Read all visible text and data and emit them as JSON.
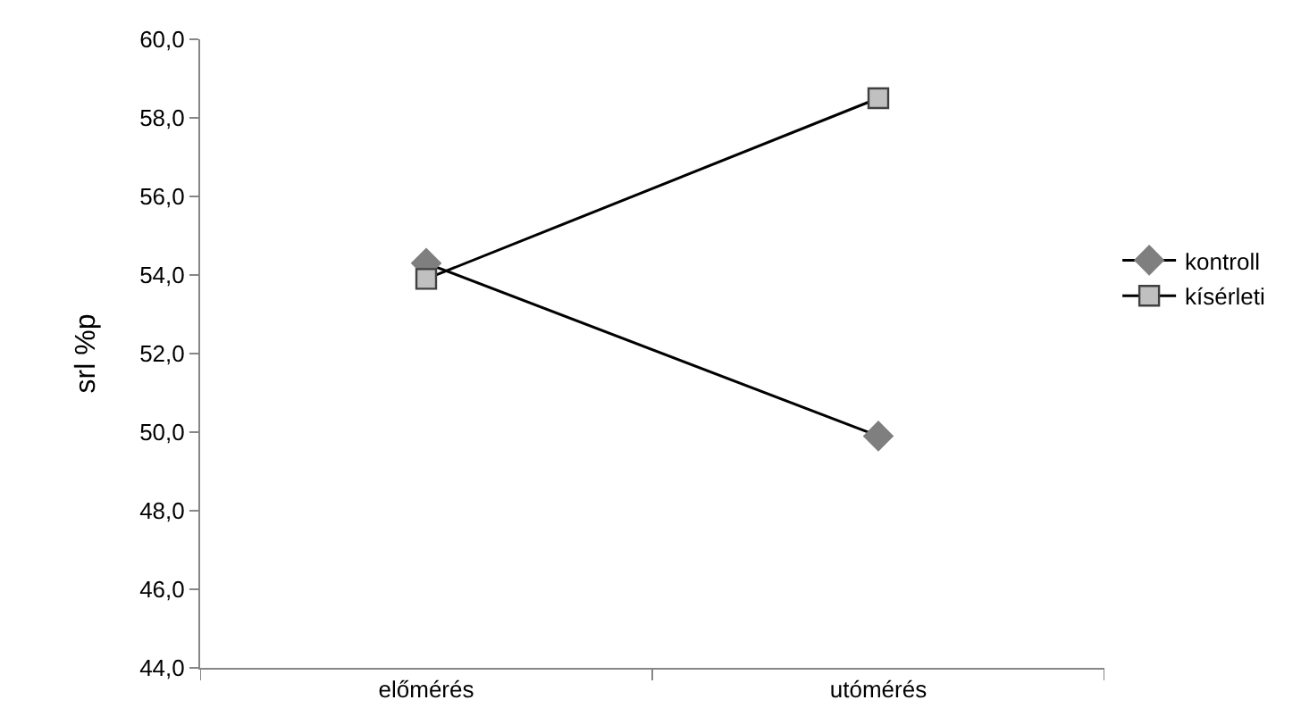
{
  "chart_data": {
    "type": "line",
    "ylabel": "srl %p",
    "categories": [
      "előmérés",
      "utómérés"
    ],
    "series": [
      {
        "name": "kontroll",
        "color": "#7f7f7f",
        "marker": "diamond",
        "values": [
          54.3,
          49.9
        ]
      },
      {
        "name": "kísérleti",
        "color": "#c0c0c0",
        "marker": "square",
        "values": [
          53.9,
          58.5
        ]
      }
    ],
    "ylim": [
      44,
      60
    ],
    "yticks": [
      {
        "value": 44,
        "label": "44,0"
      },
      {
        "value": 46,
        "label": "46,0"
      },
      {
        "value": 48,
        "label": "48,0"
      },
      {
        "value": 50,
        "label": "50,0"
      },
      {
        "value": 52,
        "label": "52,0"
      },
      {
        "value": 54,
        "label": "54,0"
      },
      {
        "value": 56,
        "label": "56,0"
      },
      {
        "value": 58,
        "label": "58,0"
      },
      {
        "value": 60,
        "label": "60,0"
      }
    ],
    "legend": "right",
    "line_style": "solid"
  }
}
